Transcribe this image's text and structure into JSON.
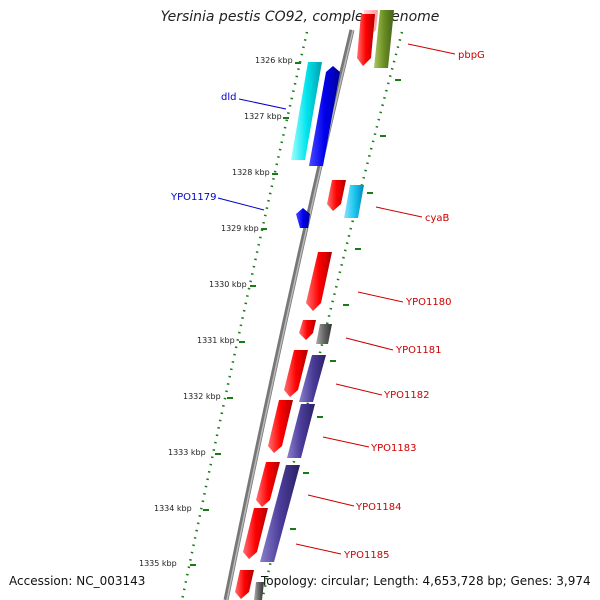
{
  "title": "Yersinia pestis CO92, complete genome",
  "footer": {
    "accession": "Accession: NC_003143",
    "summary": "Topology: circular; Length: 4,653,728 bp; Genes: 3,974"
  },
  "colors": {
    "forward_gene": "#ff0000",
    "reverse_gene": "#0000ee",
    "cyan_track": "#00e5ee",
    "skyblue_track": "#1ec8f0",
    "purple_track": "#4b3d9a",
    "olive_track": "#6b8e23",
    "gray_track": "#666666",
    "backbone": "#888888",
    "tick": "#1a7a1a",
    "red_label": "#cc0000",
    "blue_label": "#0000cc"
  },
  "ticks": [
    "1326 kbp",
    "1327 kbp",
    "1328 kbp",
    "1329 kbp",
    "1330 kbp",
    "1331 kbp",
    "1332 kbp",
    "1333 kbp",
    "1334 kbp",
    "1335 kbp"
  ],
  "genes_right": [
    "pbpG",
    "cyaB",
    "YPO1180",
    "YPO1181",
    "YPO1182",
    "YPO1183",
    "YPO1184",
    "YPO1185"
  ],
  "genes_left": [
    "dld",
    "YPO1179"
  ]
}
